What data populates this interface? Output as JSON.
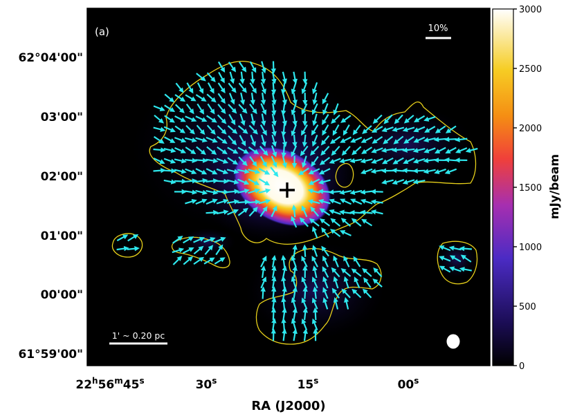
{
  "chart_data": {
    "type": "heatmap",
    "panel_label": "(a)",
    "xlabel": "RA (J2000)",
    "ylabel": "",
    "x_ticks": [
      {
        "h": "22",
        "m": "56",
        "s": "45"
      },
      {
        "h": "",
        "m": "",
        "s": "30"
      },
      {
        "h": "",
        "m": "",
        "s": "15"
      },
      {
        "h": "",
        "m": "",
        "s": "00"
      }
    ],
    "y_ticks": [
      "62°04'00\"",
      "03'00\"",
      "02'00\"",
      "01'00\"",
      "00'00\"",
      "61°59'00\""
    ],
    "colorbar": {
      "label": "mJy/beam",
      "min": 0,
      "max": 3000,
      "ticks": [
        "0",
        "500",
        "1000",
        "1500",
        "2000",
        "2500",
        "3000"
      ],
      "colormap": [
        "#000000",
        "#1b0d55",
        "#4b2bc4",
        "#a62fb0",
        "#f0403a",
        "#f58e13",
        "#f6cd24",
        "#ffffff"
      ]
    },
    "polarization_scale_label": "10%",
    "scale_bar_label": "1' ~ 0.20 pc",
    "vector_color": "#2ee8ee",
    "contour_color": "#e8d11a",
    "source_marker": "+",
    "beam": "white-ellipse"
  }
}
